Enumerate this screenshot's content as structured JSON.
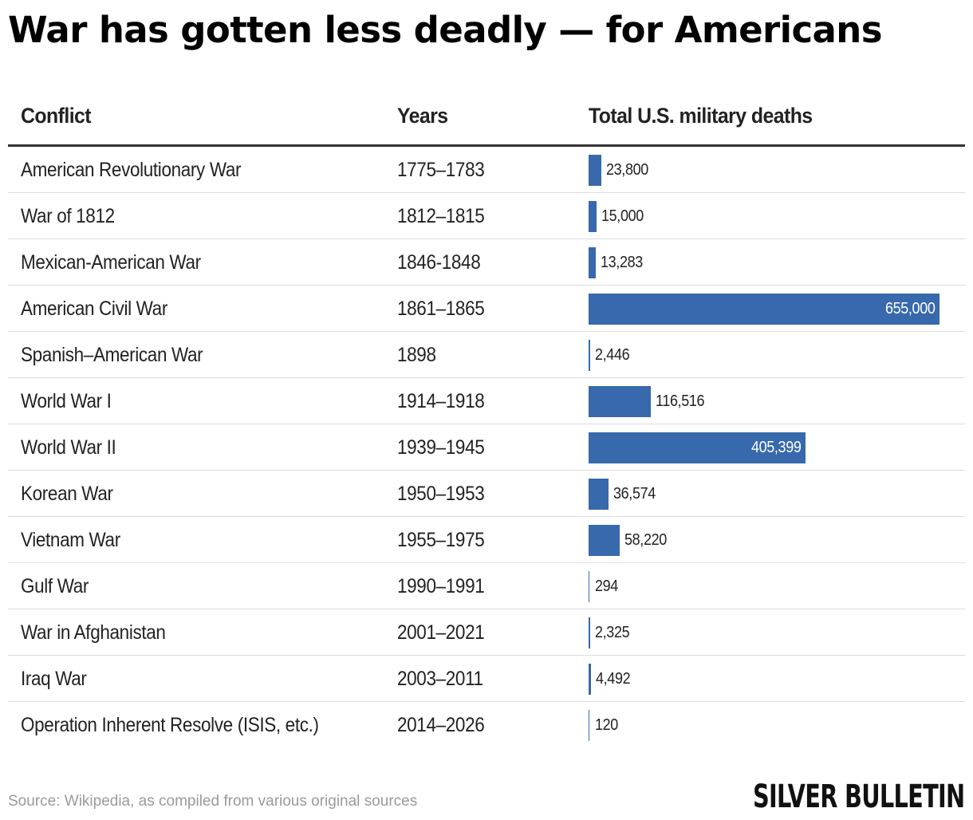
{
  "title": "War has gotten less deadly — for Americans",
  "headers": {
    "conflict": "Conflict",
    "years": "Years",
    "deaths": "Total U.S. military deaths"
  },
  "colors": {
    "bar": "#3769ac",
    "header_rule": "#333333",
    "row_rule": "#dcdcdc"
  },
  "chart_data": {
    "type": "table",
    "title": "War has gotten less deadly — for Americans",
    "columns": [
      "Conflict",
      "Years",
      "Total U.S. military deaths"
    ],
    "max_value": 655000,
    "rows": [
      {
        "conflict": "American Revolutionary War",
        "years": "1775–1783",
        "deaths": 23800,
        "label": "23,800"
      },
      {
        "conflict": "War of 1812",
        "years": "1812–1815",
        "deaths": 15000,
        "label": "15,000"
      },
      {
        "conflict": "Mexican-American War",
        "years": "1846-1848",
        "deaths": 13283,
        "label": "13,283"
      },
      {
        "conflict": "American Civil War",
        "years": "1861–1865",
        "deaths": 655000,
        "label": "655,000"
      },
      {
        "conflict": "Spanish–American War",
        "years": "1898",
        "deaths": 2446,
        "label": "2,446"
      },
      {
        "conflict": "World War I",
        "years": "1914–1918",
        "deaths": 116516,
        "label": "116,516"
      },
      {
        "conflict": "World War II",
        "years": "1939–1945",
        "deaths": 405399,
        "label": "405,399"
      },
      {
        "conflict": "Korean War",
        "years": "1950–1953",
        "deaths": 36574,
        "label": "36,574"
      },
      {
        "conflict": "Vietnam War",
        "years": "1955–1975",
        "deaths": 58220,
        "label": "58,220"
      },
      {
        "conflict": "Gulf War",
        "years": "1990–1991",
        "deaths": 294,
        "label": "294"
      },
      {
        "conflict": "War in Afghanistan",
        "years": "2001–2021",
        "deaths": 2325,
        "label": "2,325"
      },
      {
        "conflict": "Iraq War",
        "years": "2003–2011",
        "deaths": 4492,
        "label": "4,492"
      },
      {
        "conflict": "Operation Inherent Resolve (ISIS, etc.)",
        "years": "2014–2026",
        "deaths": 120,
        "label": "120"
      }
    ]
  },
  "footer": {
    "source": "Source: Wikipedia, as compiled from various original sources",
    "logo": "SILVER BULLETIN"
  }
}
